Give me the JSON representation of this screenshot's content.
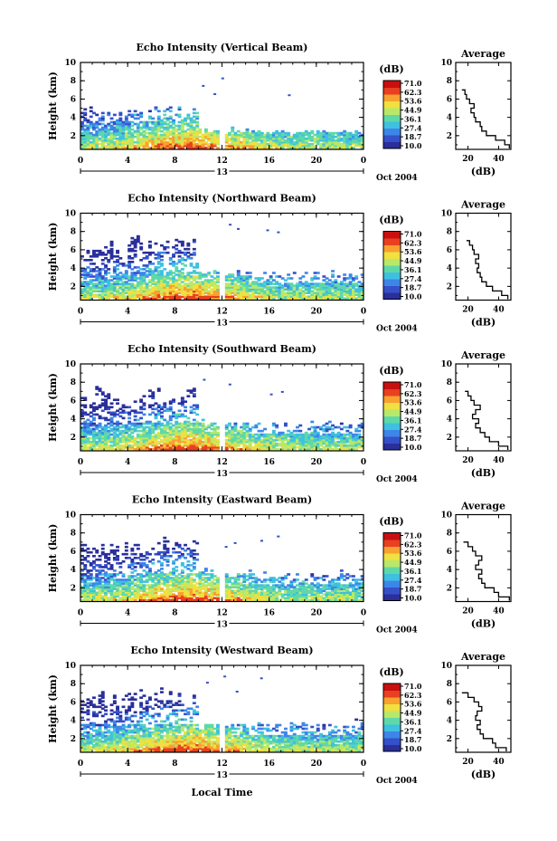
{
  "chart_data": {
    "type": "heatmap",
    "xlabel": "Local Time",
    "date_label": "Oct 2004",
    "day_marker": "13",
    "x_ticks": [
      "0",
      "4",
      "8",
      "12",
      "16",
      "20",
      "0"
    ],
    "xlim": [
      0,
      24
    ],
    "data_gap_hours": [
      11.85,
      12.15
    ],
    "colorbar": {
      "unit": "(dB)",
      "ticks": [
        "71.0",
        "62.3",
        "53.6",
        "44.9",
        "36.1",
        "27.4",
        "18.7",
        "10.0"
      ],
      "range": [
        10.0,
        71.0
      ],
      "colors": [
        "#2a2f9a",
        "#3550c8",
        "#3d86e8",
        "#3ec0e0",
        "#5fd8a8",
        "#b8e86a",
        "#f0e040",
        "#f8a030",
        "#e84020",
        "#c81010"
      ]
    },
    "panels": [
      {
        "title": "Echo Intensity (Vertical Beam)",
        "ylabel": "Height (km)",
        "ylim": [
          0.5,
          10
        ],
        "y_ticks": [
          "2",
          "4",
          "6",
          "8",
          "10"
        ],
        "profile_title": "Average",
        "profile_xlabel": "(dB)",
        "profile_x_ticks": [
          "20",
          "40"
        ],
        "profile_xlim": [
          12,
          48
        ],
        "profile": {
          "height": [
            0.6,
            1.0,
            1.5,
            2.0,
            2.5,
            3.0,
            3.5,
            4.0,
            4.5,
            5.0,
            5.5,
            6.0,
            6.5,
            7.0
          ],
          "db": [
            47,
            44,
            38,
            32,
            29,
            28,
            25,
            24,
            22,
            24,
            21,
            19,
            18,
            16
          ]
        },
        "echo_top_km": 4.5
      },
      {
        "title": "Echo Intensity (Northward Beam)",
        "ylabel": "Height (km)",
        "ylim": [
          0.5,
          10
        ],
        "y_ticks": [
          "2",
          "4",
          "6",
          "8",
          "10"
        ],
        "profile_title": "Average",
        "profile_xlabel": "(dB)",
        "profile_x_ticks": [
          "20",
          "40"
        ],
        "profile_xlim": [
          12,
          48
        ],
        "profile": {
          "height": [
            0.6,
            1.0,
            1.5,
            2.0,
            2.5,
            3.0,
            3.5,
            4.0,
            4.5,
            5.0,
            5.5,
            6.0,
            6.5,
            7.0
          ],
          "db": [
            46,
            42,
            36,
            32,
            29,
            28,
            26,
            27,
            25,
            27,
            24,
            23,
            21,
            19
          ]
        },
        "echo_top_km": 6.5
      },
      {
        "title": "Echo Intensity (Southward Beam)",
        "ylabel": "Height (km)",
        "ylim": [
          0.5,
          10
        ],
        "y_ticks": [
          "2",
          "4",
          "6",
          "8",
          "10"
        ],
        "profile_title": "Average",
        "profile_xlabel": "(dB)",
        "profile_x_ticks": [
          "20",
          "40"
        ],
        "profile_xlim": [
          12,
          48
        ],
        "profile": {
          "height": [
            0.6,
            1.0,
            1.5,
            2.0,
            2.5,
            3.0,
            3.5,
            4.0,
            4.5,
            5.0,
            5.5,
            6.0,
            6.5,
            7.0
          ],
          "db": [
            46,
            40,
            34,
            31,
            28,
            25,
            27,
            23,
            25,
            28,
            24,
            22,
            20,
            18
          ]
        },
        "echo_top_km": 6.5
      },
      {
        "title": "Echo Intensity (Eastward Beam)",
        "ylabel": "Height (km)",
        "ylim": [
          0.5,
          10
        ],
        "y_ticks": [
          "2",
          "4",
          "6",
          "8",
          "10"
        ],
        "profile_title": "Average",
        "profile_xlabel": "(dB)",
        "profile_x_ticks": [
          "20",
          "40"
        ],
        "profile_xlim": [
          12,
          48
        ],
        "profile": {
          "height": [
            0.6,
            1.0,
            1.5,
            2.0,
            2.5,
            3.0,
            3.5,
            4.0,
            4.5,
            5.0,
            5.5,
            6.0,
            6.5,
            7.0
          ],
          "db": [
            47,
            40,
            37,
            31,
            29,
            27,
            29,
            25,
            27,
            29,
            25,
            23,
            20,
            17
          ]
        },
        "echo_top_km": 6.5
      },
      {
        "title": "Echo Intensity (Westward Beam)",
        "ylabel": "Height (km)",
        "ylim": [
          0.5,
          10
        ],
        "y_ticks": [
          "2",
          "4",
          "6",
          "8",
          "10"
        ],
        "profile_title": "Average",
        "profile_xlabel": "(dB)",
        "profile_x_ticks": [
          "20",
          "40"
        ],
        "profile_xlim": [
          12,
          48
        ],
        "profile": {
          "height": [
            0.6,
            1.0,
            1.5,
            2.0,
            2.5,
            3.0,
            3.5,
            4.0,
            4.5,
            5.0,
            5.5,
            6.0,
            6.5,
            7.0
          ],
          "db": [
            45,
            38,
            36,
            30,
            28,
            26,
            28,
            25,
            26,
            29,
            27,
            24,
            20,
            16
          ]
        },
        "echo_top_km": 6.5
      }
    ]
  }
}
